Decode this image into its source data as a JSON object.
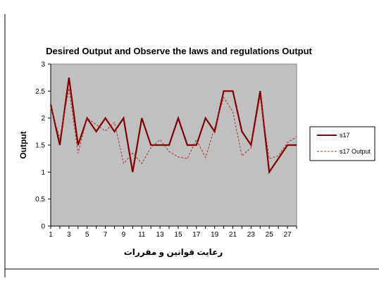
{
  "chart_data": {
    "type": "line",
    "title": "Desired Output and Observe the laws and regulations Output",
    "xlabel": "رعایت قوانین و مقررات",
    "ylabel": "Output",
    "x": [
      1,
      2,
      3,
      4,
      5,
      6,
      7,
      8,
      9,
      10,
      11,
      12,
      13,
      14,
      15,
      16,
      17,
      18,
      19,
      20,
      21,
      22,
      23,
      24,
      25,
      26,
      27,
      28
    ],
    "x_tick_labels": [
      "1",
      "3",
      "5",
      "7",
      "9",
      "11",
      "13",
      "15",
      "17",
      "19",
      "21",
      "23",
      "25",
      "27"
    ],
    "y_ticks": [
      "0",
      "0.5",
      "1",
      "1.5",
      "2",
      "2.5",
      "3"
    ],
    "ylim": [
      0,
      3
    ],
    "grid": false,
    "plot_background": "#c0c0c0",
    "legend_position": "right",
    "series": [
      {
        "name": "s17",
        "color": "#800000",
        "style": "solid",
        "values": [
          2.25,
          1.5,
          2.75,
          1.5,
          2.0,
          1.75,
          2.0,
          1.75,
          2.0,
          1.0,
          2.0,
          1.5,
          1.5,
          1.5,
          2.0,
          1.5,
          1.5,
          2.0,
          1.75,
          2.5,
          2.5,
          1.75,
          1.5,
          2.5,
          1.0,
          1.25,
          1.5,
          1.5
        ]
      },
      {
        "name": "s17 Output",
        "color": "#b03030",
        "style": "dashed",
        "values": [
          2.2,
          1.62,
          2.55,
          1.35,
          2.0,
          1.88,
          1.76,
          1.92,
          1.16,
          1.35,
          1.16,
          1.45,
          1.6,
          1.38,
          1.28,
          1.25,
          1.6,
          1.27,
          1.82,
          2.38,
          2.12,
          1.3,
          1.45,
          2.4,
          1.25,
          1.3,
          1.55,
          1.65
        ]
      }
    ]
  }
}
